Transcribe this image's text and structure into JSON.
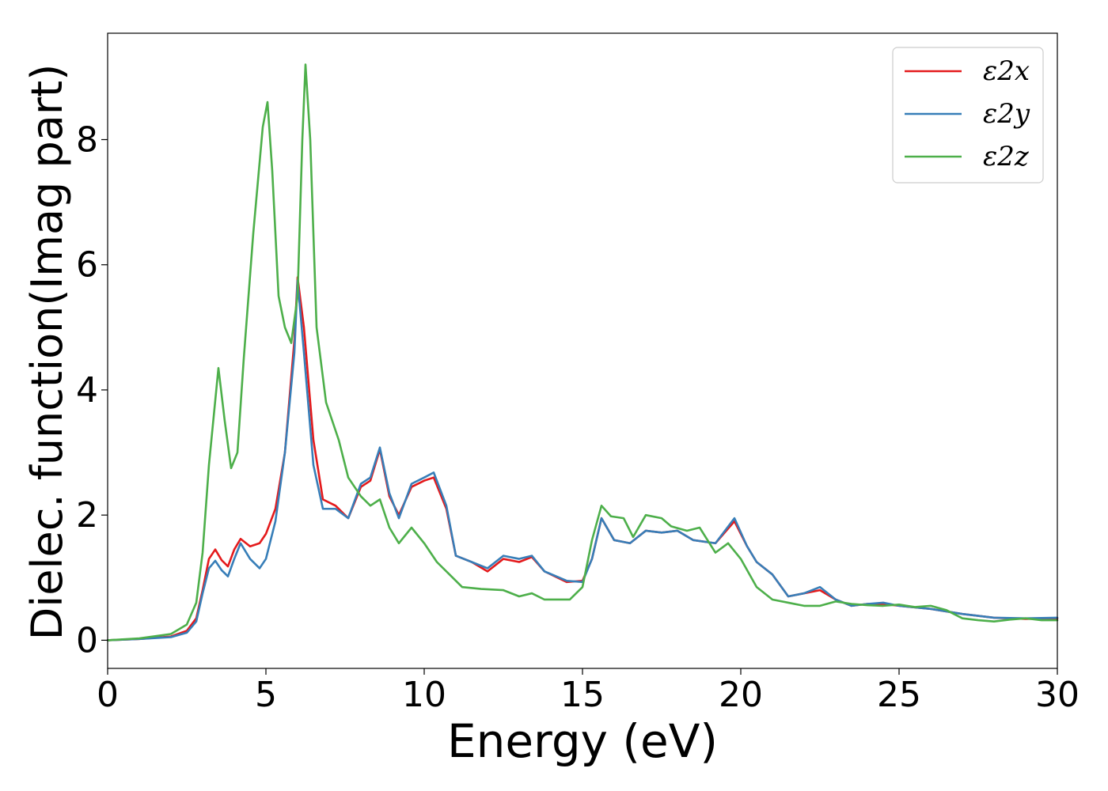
{
  "chart_data": {
    "type": "line",
    "title": "",
    "xlabel": "Energy (eV)",
    "ylabel": "Dielec. function(Imag part)",
    "xlim": [
      0,
      30
    ],
    "ylim": [
      -0.45,
      9.7
    ],
    "xticks": [
      0,
      5,
      10,
      15,
      20,
      25,
      30
    ],
    "yticks": [
      0,
      2,
      4,
      6,
      8
    ],
    "grid": false,
    "legend_position": "top-right",
    "series": [
      {
        "name": "ε2x",
        "color": "#e41a1c",
        "points": [
          [
            0,
            0
          ],
          [
            1,
            0.02
          ],
          [
            2,
            0.06
          ],
          [
            2.5,
            0.15
          ],
          [
            2.8,
            0.35
          ],
          [
            3.0,
            0.8
          ],
          [
            3.2,
            1.3
          ],
          [
            3.4,
            1.45
          ],
          [
            3.6,
            1.28
          ],
          [
            3.8,
            1.18
          ],
          [
            4.0,
            1.45
          ],
          [
            4.2,
            1.62
          ],
          [
            4.5,
            1.5
          ],
          [
            4.8,
            1.55
          ],
          [
            5.0,
            1.7
          ],
          [
            5.3,
            2.1
          ],
          [
            5.6,
            3.0
          ],
          [
            5.9,
            4.8
          ],
          [
            6.0,
            5.8
          ],
          [
            6.2,
            5.0
          ],
          [
            6.5,
            3.2
          ],
          [
            6.8,
            2.25
          ],
          [
            7.2,
            2.15
          ],
          [
            7.6,
            1.95
          ],
          [
            8.0,
            2.45
          ],
          [
            8.3,
            2.55
          ],
          [
            8.6,
            3.05
          ],
          [
            8.9,
            2.3
          ],
          [
            9.2,
            2.0
          ],
          [
            9.6,
            2.45
          ],
          [
            10.0,
            2.55
          ],
          [
            10.3,
            2.6
          ],
          [
            10.7,
            2.1
          ],
          [
            11.0,
            1.35
          ],
          [
            11.5,
            1.25
          ],
          [
            12.0,
            1.1
          ],
          [
            12.5,
            1.3
          ],
          [
            13.0,
            1.25
          ],
          [
            13.4,
            1.33
          ],
          [
            13.8,
            1.1
          ],
          [
            14.5,
            0.93
          ],
          [
            15.0,
            0.95
          ],
          [
            15.3,
            1.3
          ],
          [
            15.6,
            1.95
          ],
          [
            16.0,
            1.6
          ],
          [
            16.5,
            1.55
          ],
          [
            17.0,
            1.75
          ],
          [
            17.5,
            1.72
          ],
          [
            18.0,
            1.75
          ],
          [
            18.5,
            1.6
          ],
          [
            19.2,
            1.55
          ],
          [
            19.8,
            1.9
          ],
          [
            20.2,
            1.5
          ],
          [
            20.5,
            1.25
          ],
          [
            21.0,
            1.05
          ],
          [
            21.5,
            0.7
          ],
          [
            22.0,
            0.75
          ],
          [
            22.5,
            0.8
          ],
          [
            23.0,
            0.65
          ],
          [
            23.5,
            0.55
          ],
          [
            24.0,
            0.58
          ],
          [
            24.5,
            0.58
          ],
          [
            25.0,
            0.55
          ],
          [
            26.0,
            0.5
          ],
          [
            27.0,
            0.42
          ],
          [
            28.0,
            0.36
          ],
          [
            29.0,
            0.34
          ],
          [
            30.0,
            0.35
          ]
        ]
      },
      {
        "name": "ε2y",
        "color": "#377eb8",
        "points": [
          [
            0,
            0
          ],
          [
            1,
            0.02
          ],
          [
            2,
            0.05
          ],
          [
            2.5,
            0.12
          ],
          [
            2.8,
            0.3
          ],
          [
            3.0,
            0.75
          ],
          [
            3.2,
            1.15
          ],
          [
            3.4,
            1.27
          ],
          [
            3.6,
            1.12
          ],
          [
            3.8,
            1.02
          ],
          [
            4.0,
            1.3
          ],
          [
            4.2,
            1.55
          ],
          [
            4.5,
            1.3
          ],
          [
            4.8,
            1.15
          ],
          [
            5.0,
            1.3
          ],
          [
            5.3,
            1.9
          ],
          [
            5.6,
            3.0
          ],
          [
            5.9,
            4.6
          ],
          [
            6.0,
            5.75
          ],
          [
            6.2,
            4.6
          ],
          [
            6.5,
            2.8
          ],
          [
            6.8,
            2.1
          ],
          [
            7.2,
            2.1
          ],
          [
            7.6,
            1.95
          ],
          [
            8.0,
            2.5
          ],
          [
            8.3,
            2.6
          ],
          [
            8.6,
            3.08
          ],
          [
            8.9,
            2.35
          ],
          [
            9.2,
            1.95
          ],
          [
            9.6,
            2.5
          ],
          [
            10.0,
            2.6
          ],
          [
            10.3,
            2.68
          ],
          [
            10.7,
            2.15
          ],
          [
            11.0,
            1.35
          ],
          [
            11.5,
            1.25
          ],
          [
            12.0,
            1.15
          ],
          [
            12.5,
            1.35
          ],
          [
            13.0,
            1.3
          ],
          [
            13.4,
            1.35
          ],
          [
            13.8,
            1.1
          ],
          [
            14.5,
            0.95
          ],
          [
            15.0,
            0.93
          ],
          [
            15.3,
            1.3
          ],
          [
            15.6,
            1.95
          ],
          [
            16.0,
            1.6
          ],
          [
            16.5,
            1.55
          ],
          [
            17.0,
            1.75
          ],
          [
            17.5,
            1.72
          ],
          [
            18.0,
            1.75
          ],
          [
            18.5,
            1.6
          ],
          [
            19.2,
            1.55
          ],
          [
            19.8,
            1.95
          ],
          [
            20.2,
            1.5
          ],
          [
            20.5,
            1.25
          ],
          [
            21.0,
            1.05
          ],
          [
            21.5,
            0.7
          ],
          [
            22.0,
            0.75
          ],
          [
            22.5,
            0.85
          ],
          [
            23.0,
            0.65
          ],
          [
            23.5,
            0.55
          ],
          [
            24.0,
            0.58
          ],
          [
            24.5,
            0.6
          ],
          [
            25.0,
            0.55
          ],
          [
            26.0,
            0.5
          ],
          [
            27.0,
            0.42
          ],
          [
            28.0,
            0.36
          ],
          [
            29.0,
            0.35
          ],
          [
            30.0,
            0.36
          ]
        ]
      },
      {
        "name": "ε2z",
        "color": "#4daf4a",
        "points": [
          [
            0,
            0
          ],
          [
            1,
            0.03
          ],
          [
            2,
            0.1
          ],
          [
            2.5,
            0.25
          ],
          [
            2.8,
            0.6
          ],
          [
            3.0,
            1.4
          ],
          [
            3.2,
            2.8
          ],
          [
            3.5,
            4.35
          ],
          [
            3.7,
            3.5
          ],
          [
            3.9,
            2.75
          ],
          [
            4.1,
            3.0
          ],
          [
            4.3,
            4.5
          ],
          [
            4.6,
            6.5
          ],
          [
            4.9,
            8.2
          ],
          [
            5.05,
            8.6
          ],
          [
            5.2,
            7.5
          ],
          [
            5.4,
            5.5
          ],
          [
            5.6,
            5.0
          ],
          [
            5.8,
            4.75
          ],
          [
            6.0,
            5.5
          ],
          [
            6.15,
            8.0
          ],
          [
            6.25,
            9.2
          ],
          [
            6.4,
            8.0
          ],
          [
            6.6,
            5.0
          ],
          [
            6.9,
            3.8
          ],
          [
            7.3,
            3.2
          ],
          [
            7.6,
            2.6
          ],
          [
            8.0,
            2.3
          ],
          [
            8.3,
            2.15
          ],
          [
            8.6,
            2.25
          ],
          [
            8.9,
            1.8
          ],
          [
            9.2,
            1.55
          ],
          [
            9.6,
            1.8
          ],
          [
            10.0,
            1.55
          ],
          [
            10.4,
            1.25
          ],
          [
            10.8,
            1.05
          ],
          [
            11.2,
            0.85
          ],
          [
            11.8,
            0.82
          ],
          [
            12.5,
            0.8
          ],
          [
            13.0,
            0.7
          ],
          [
            13.4,
            0.75
          ],
          [
            13.8,
            0.65
          ],
          [
            14.2,
            0.65
          ],
          [
            14.6,
            0.65
          ],
          [
            15.0,
            0.85
          ],
          [
            15.3,
            1.6
          ],
          [
            15.6,
            2.15
          ],
          [
            15.9,
            1.98
          ],
          [
            16.3,
            1.95
          ],
          [
            16.6,
            1.65
          ],
          [
            17.0,
            2.0
          ],
          [
            17.5,
            1.95
          ],
          [
            17.8,
            1.82
          ],
          [
            18.3,
            1.75
          ],
          [
            18.7,
            1.8
          ],
          [
            19.2,
            1.4
          ],
          [
            19.6,
            1.55
          ],
          [
            20.0,
            1.3
          ],
          [
            20.5,
            0.85
          ],
          [
            21.0,
            0.65
          ],
          [
            21.5,
            0.6
          ],
          [
            22.0,
            0.55
          ],
          [
            22.5,
            0.55
          ],
          [
            23.0,
            0.62
          ],
          [
            23.5,
            0.58
          ],
          [
            24.0,
            0.56
          ],
          [
            24.5,
            0.55
          ],
          [
            25.0,
            0.57
          ],
          [
            25.5,
            0.53
          ],
          [
            26.0,
            0.55
          ],
          [
            26.5,
            0.48
          ],
          [
            27.0,
            0.35
          ],
          [
            27.5,
            0.32
          ],
          [
            28.0,
            0.3
          ],
          [
            28.5,
            0.33
          ],
          [
            29.0,
            0.35
          ],
          [
            29.5,
            0.32
          ],
          [
            30.0,
            0.32
          ]
        ]
      }
    ]
  }
}
